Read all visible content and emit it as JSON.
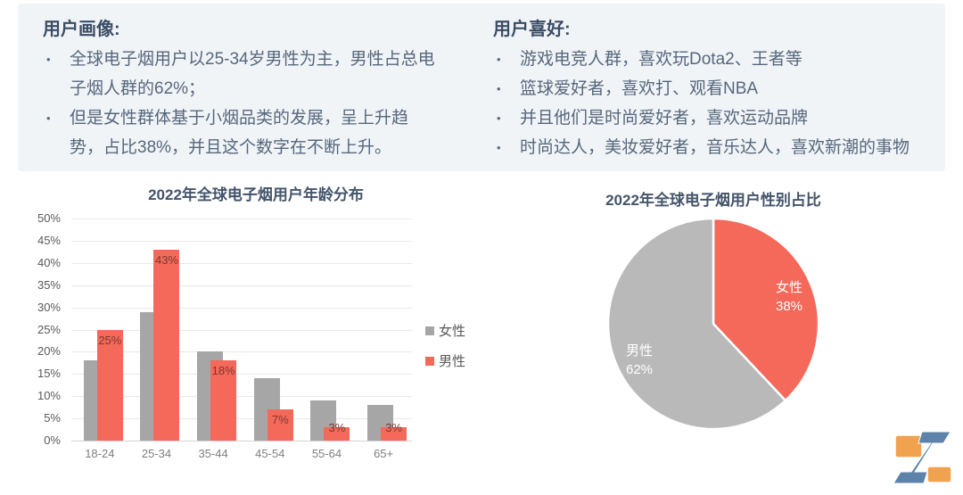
{
  "panel": {
    "profile": {
      "title": "用户画像:",
      "bullets": [
        "全球电子烟用户以25-34岁男性为主，男性占总电子烟人群的62%；",
        "但是女性群体基于小烟品类的发展，呈上升趋势，占比38%，并且这个数字在不断上升。"
      ]
    },
    "preferences": {
      "title": "用户喜好:",
      "bullets": [
        "游戏电竞人群，喜欢玩Dota2、王者等",
        "篮球爱好者，喜欢打、观看NBA",
        "并且他们是时尚爱好者，喜欢运动品牌",
        "时尚达人，美妆爱好者，音乐达人，喜欢新潮的事物"
      ]
    }
  },
  "chart_data": [
    {
      "type": "bar",
      "title": "2022年全球电子烟用户年龄分布",
      "categories": [
        "18-24",
        "25-34",
        "35-44",
        "45-54",
        "55-64",
        "65+"
      ],
      "series": [
        {
          "name": "女性",
          "color": "#a6a6a6",
          "values": [
            18,
            29,
            20,
            14,
            9,
            8
          ]
        },
        {
          "name": "男性",
          "color": "#f4695a",
          "values": [
            25,
            43,
            18,
            7,
            3,
            3
          ],
          "labels": [
            "25%",
            "43%",
            "18%",
            "7%",
            "3%",
            "3%"
          ]
        }
      ],
      "ylim": [
        0,
        50
      ],
      "ytick_step": 5,
      "ytick_suffix": "%",
      "grid": true,
      "legend_position": "right"
    },
    {
      "type": "pie",
      "title": "2022年全球电子烟用户性别占比",
      "slices": [
        {
          "label": "女性",
          "value": 38,
          "display": "38%",
          "color": "#f4695a"
        },
        {
          "label": "男性",
          "value": 62,
          "display": "62%",
          "color": "#b9b9b9"
        }
      ],
      "start_angle": "top",
      "direction": "clockwise"
    }
  ],
  "colors": {
    "accent_red": "#f4695a",
    "bar_gray": "#a6a6a6",
    "pie_gray": "#b9b9b9",
    "panel_bg": "#f1f4f7",
    "title_navy": "#3b4d66",
    "body_slate": "#56677c",
    "chart_title": "#44546a",
    "data_label": "#7a392f",
    "logo_orange": "#f0a24f",
    "logo_blue": "#5e83a8"
  },
  "logo": {
    "name": "z-logo"
  }
}
